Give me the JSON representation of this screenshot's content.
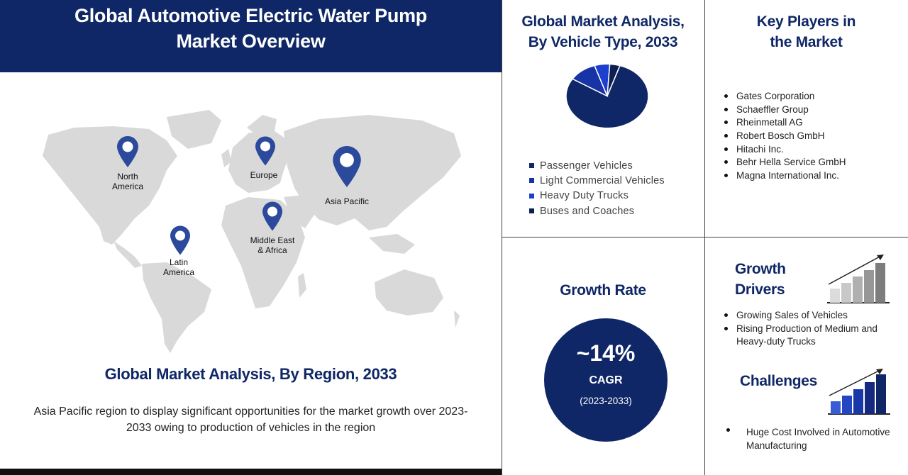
{
  "header": {
    "title": "Global Automotive Electric Water Pump\nMarket Overview"
  },
  "colors": {
    "navy": "#0f2766",
    "map_land": "#d9d9d9",
    "pin": "#2c4a9c",
    "passenger": "#0f2766",
    "light_commercial": "#1733a6",
    "heavy_duty": "#1c3fcf",
    "buses": "#0b1f52"
  },
  "map": {
    "regions": [
      {
        "key": "north_america",
        "label": "North\nAmerica"
      },
      {
        "key": "europe",
        "label": "Europe"
      },
      {
        "key": "asia_pacific",
        "label": "Asia Pacific"
      },
      {
        "key": "middle_east_africa",
        "label": "Middle East\n& Africa"
      },
      {
        "key": "latin_america",
        "label": "Latin\nAmerica"
      }
    ]
  },
  "region_section": {
    "title": "Global Market Analysis,  By Region, 2033",
    "description": "Asia Pacific region to display significant opportunities for the market growth over  2023-2033  owing to production of vehicles in the region"
  },
  "chart_data": {
    "type": "pie",
    "title": "Global Market Analysis,\nBy Vehicle Type, 2033",
    "labels": [
      "Passenger Vehicles",
      "Light Commercial Vehicles",
      "Heavy Duty Trucks",
      "Buses and Coaches"
    ],
    "values": [
      79,
      11,
      6,
      4
    ],
    "colors": [
      "#0f2766",
      "#1733a6",
      "#1c3fcf",
      "#0b1f52"
    ],
    "legend_position": "bottom"
  },
  "key_players": {
    "title": "Key Players in\nthe Market",
    "items": [
      "Gates Corporation",
      "Schaeffler Group",
      "Rheinmetall  AG",
      "Robert Bosch GmbH",
      "Hitachi Inc.",
      "Behr Hella Service GmbH",
      "Magna International  Inc."
    ]
  },
  "growth_rate": {
    "title": "Growth Rate",
    "value": "~14%",
    "label": "CAGR",
    "period": "(2023-2033)"
  },
  "growth_drivers": {
    "title": "Growth\nDrivers",
    "items": [
      "Growing  Sales of Vehicles",
      "Rising  Production  of  Medium  and Heavy-duty Trucks"
    ],
    "icon": "grey-growth-bars-icon"
  },
  "challenges": {
    "title": "Challenges",
    "items": [
      "Huge Cost Involved in Automotive Manufacturing"
    ],
    "icon": "blue-growth-bars-icon"
  }
}
